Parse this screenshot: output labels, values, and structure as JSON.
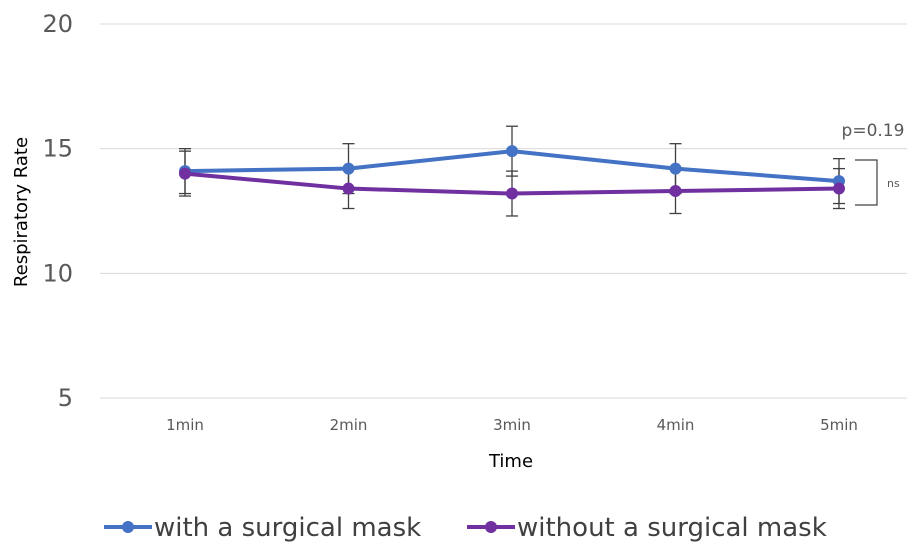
{
  "chart_data": {
    "type": "line",
    "title": "",
    "xlabel": "Time",
    "ylabel": "Respiratory Rate",
    "categories": [
      "1min",
      "2min",
      "3min",
      "4min",
      "5min"
    ],
    "ylim": [
      5,
      20
    ],
    "yticks": [
      "5",
      "10",
      "15",
      "20"
    ],
    "grid": true,
    "legend_position": "bottom",
    "series": [
      {
        "name": "with a surgical mask",
        "color": "#4472C4",
        "values": [
          14.1,
          14.2,
          14.9,
          14.2,
          13.7
        ],
        "error": [
          0.9,
          1.0,
          1.0,
          1.0,
          0.9
        ]
      },
      {
        "name": "without a surgical mask",
        "color": "#7030A0",
        "values": [
          14.0,
          13.4,
          13.2,
          13.3,
          13.4
        ],
        "error": [
          0.9,
          0.8,
          0.9,
          0.9,
          0.8
        ]
      }
    ],
    "annotations": {
      "p_value": "p=0.19",
      "significance": "ns"
    }
  }
}
